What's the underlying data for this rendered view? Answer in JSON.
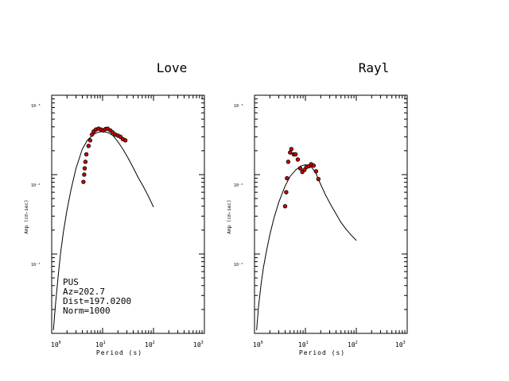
{
  "colors": {
    "marker_fill": "#cc0000",
    "marker_stroke": "#000000",
    "curve": "#000000",
    "axes": "#000000"
  },
  "chart_data": [
    {
      "type": "scatter",
      "title": "Love",
      "xlabel": "Period (s)",
      "ylabel": "Amp (cm-sec)",
      "x_scale": "log",
      "y_scale": "log",
      "xlim": [
        1,
        1000
      ],
      "ylim": [
        1e-06,
        0.001
      ],
      "x_tick_labels": [
        {
          "base": "10",
          "exp": "0"
        },
        {
          "base": "10",
          "exp": "1"
        },
        {
          "base": "10",
          "exp": "2"
        },
        {
          "base": "10",
          "exp": "3"
        }
      ],
      "y_tick_labels": [
        "10⁻³",
        "10⁻⁴",
        "10⁻⁵"
      ],
      "annotation": [
        "PUS",
        "Az=202.7",
        "Dist=197.0200",
        "Norm=1000"
      ],
      "series": [
        {
          "kind": "observed",
          "x": [
            4.2,
            4.35,
            4.45,
            4.6,
            4.8,
            5.3,
            5.7,
            6.2,
            6.7,
            7.4,
            8.3,
            9.3,
            10.3,
            11.4,
            12.5,
            14.2,
            15.8,
            17.7,
            20.0,
            22.4,
            25.0,
            28.0
          ],
          "y": [
            8.1e-05,
            0.0001,
            0.00012,
            0.000145,
            0.00018,
            0.00023,
            0.00027,
            0.00032,
            0.00035,
            0.00037,
            0.00038,
            0.00037,
            0.00036,
            0.000375,
            0.00038,
            0.00036,
            0.00034,
            0.00032,
            0.00031,
            0.0003,
            0.00028,
            0.00027
          ]
        },
        {
          "kind": "synthetic",
          "x": [
            1.08,
            1.2,
            1.35,
            1.5,
            1.7,
            2.0,
            2.4,
            3.0,
            4.0,
            5.0,
            6.5,
            8.0,
            10.0,
            12.5,
            16.0,
            20.0,
            25.0,
            32.0,
            40.0,
            50.0,
            63.0,
            80.0,
            100.0
          ],
          "y": [
            1.1e-06,
            2.5e-06,
            5.5e-06,
            1.05e-05,
            1.9e-05,
            3.6e-05,
            6.5e-05,
            0.00012,
            0.00021,
            0.00027,
            0.00032,
            0.00034,
            0.00035,
            0.00034,
            0.00031,
            0.00026,
            0.00021,
            0.00016,
            0.000122,
            9.2e-05,
            7.1e-05,
            5.3e-05,
            3.9e-05
          ]
        }
      ]
    },
    {
      "type": "scatter",
      "title": "Rayl",
      "xlabel": "Period (s)",
      "ylabel": "Amp (cm-sec)",
      "x_scale": "log",
      "y_scale": "log",
      "xlim": [
        1,
        1000
      ],
      "ylim": [
        1e-06,
        0.001
      ],
      "x_tick_labels": [
        {
          "base": "10",
          "exp": "0"
        },
        {
          "base": "10",
          "exp": "1"
        },
        {
          "base": "10",
          "exp": "2"
        },
        {
          "base": "10",
          "exp": "3"
        }
      ],
      "y_tick_labels": [
        "10⁻³",
        "10⁻⁴",
        "10⁻⁵"
      ],
      "series": [
        {
          "kind": "observed",
          "x": [
            4.0,
            4.2,
            4.35,
            4.6,
            5.0,
            5.3,
            5.9,
            6.4,
            7.1,
            7.9,
            8.7,
            9.6,
            10.5,
            11.8,
            13.0,
            14.5,
            16.2,
            18.0
          ],
          "y": [
            4e-05,
            6e-05,
            9e-05,
            0.000145,
            0.00019,
            0.00021,
            0.00018,
            0.00018,
            0.000155,
            0.00012,
            0.000108,
            0.000115,
            0.000125,
            0.000128,
            0.000135,
            0.00013,
            0.00011,
            8.8e-05
          ]
        },
        {
          "kind": "synthetic",
          "x": [
            1.1,
            1.2,
            1.35,
            1.5,
            1.7,
            2.0,
            2.4,
            3.0,
            4.0,
            5.0,
            6.5,
            8.0,
            10.0,
            12.5,
            16.0,
            20.0,
            25.0,
            32.0,
            40.0,
            50.0,
            63.0,
            80.0,
            100.0
          ],
          "y": [
            1.1e-06,
            2.2e-06,
            4.2e-06,
            6.8e-06,
            1.05e-05,
            1.75e-05,
            2.8e-05,
            4.5e-05,
            7.2e-05,
            9.5e-05,
            0.000115,
            0.000128,
            0.000133,
            0.00013,
            0.000105,
            7.5e-05,
            5.5e-05,
            4.1e-05,
            3.2e-05,
            2.5e-05,
            2.05e-05,
            1.72e-05,
            1.48e-05
          ]
        }
      ]
    }
  ]
}
